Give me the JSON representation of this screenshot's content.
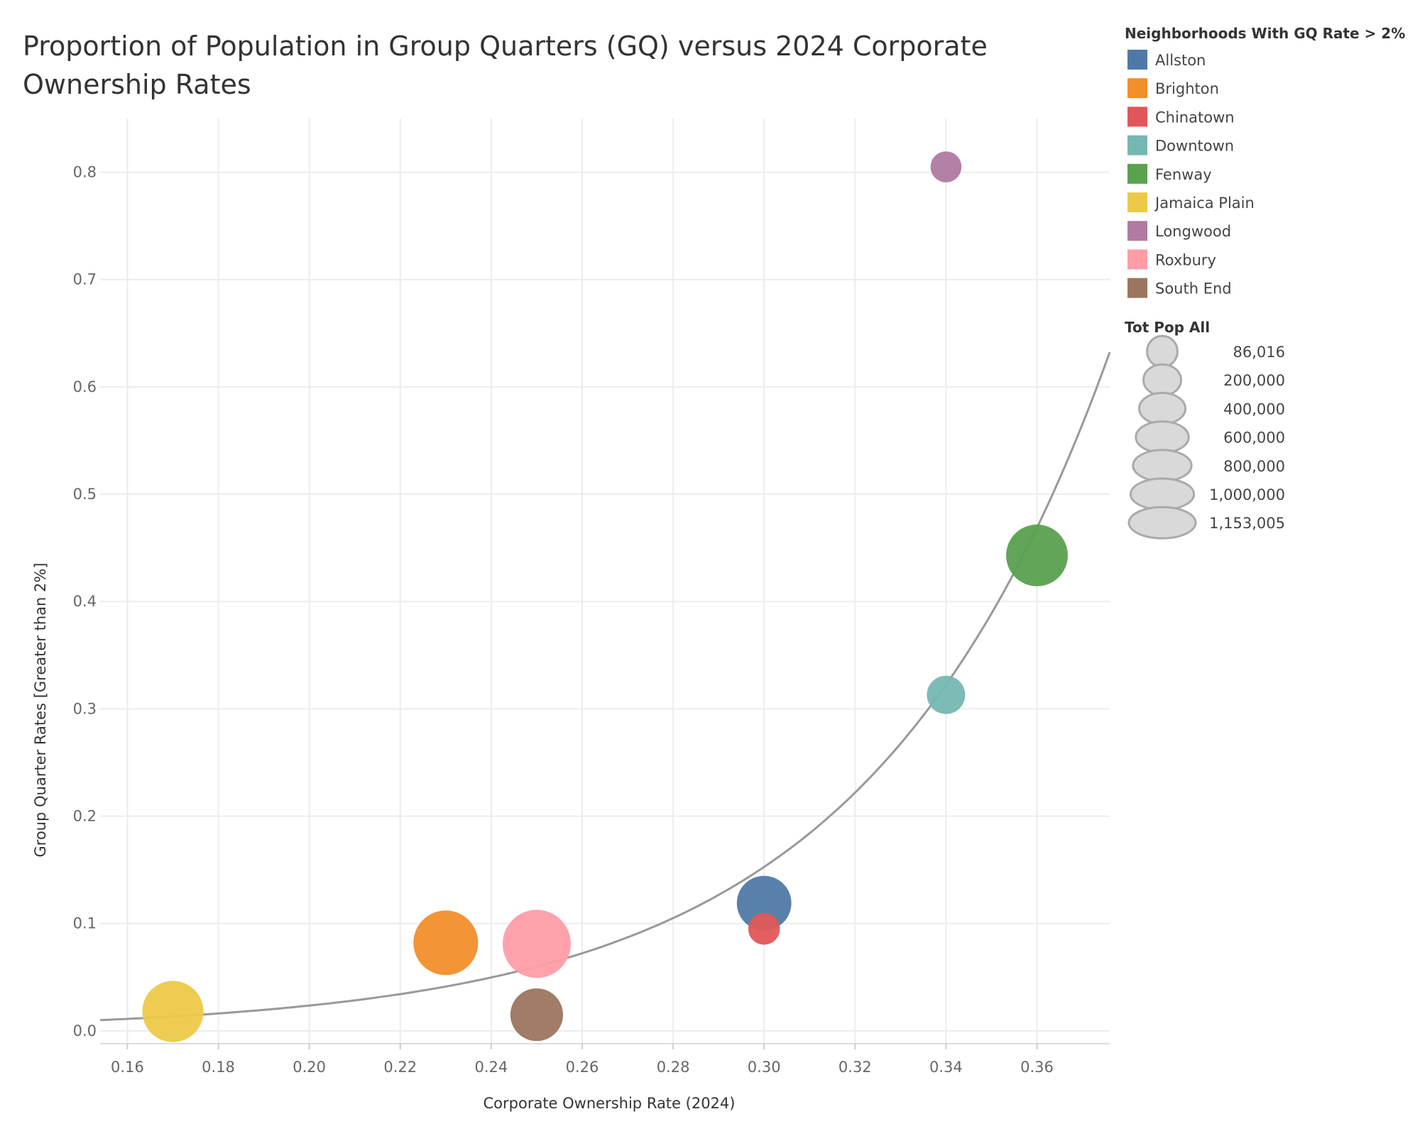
{
  "chart_data": {
    "type": "scatter",
    "title": "Proportion of Population in Group Quarters (GQ) versus 2024 Corporate Ownership Rates",
    "xlabel": "Corporate Ownership Rate (2024)",
    "ylabel": "Group Quarter Rates [Greater than 2%]",
    "xlim": [
      0.154,
      0.376
    ],
    "ylim": [
      -0.012,
      0.85
    ],
    "xticks": [
      0.16,
      0.18,
      0.2,
      0.22,
      0.24,
      0.26,
      0.28,
      0.3,
      0.32,
      0.34,
      0.36
    ],
    "xtick_labels": [
      "0.16",
      "0.18",
      "0.20",
      "0.22",
      "0.24",
      "0.26",
      "0.28",
      "0.30",
      "0.32",
      "0.34",
      "0.36"
    ],
    "yticks": [
      0.0,
      0.1,
      0.2,
      0.3,
      0.4,
      0.5,
      0.6,
      0.7,
      0.8
    ],
    "ytick_labels": [
      "0.0",
      "0.1",
      "0.2",
      "0.3",
      "0.4",
      "0.5",
      "0.6",
      "0.7",
      "0.8"
    ],
    "grid": true,
    "legend_placement": "right",
    "color_legend_title": "Neighborhoods With GQ Rate > 2%",
    "size_legend_title": "Tot Pop All",
    "size_legend": [
      {
        "value": 86016,
        "label": "86,016"
      },
      {
        "value": 200000,
        "label": "200,000"
      },
      {
        "value": 400000,
        "label": "400,000"
      },
      {
        "value": 600000,
        "label": "600,000"
      },
      {
        "value": 800000,
        "label": "800,000"
      },
      {
        "value": 1000000,
        "label": "1,000,000"
      },
      {
        "value": 1153005,
        "label": "1,153,005"
      }
    ],
    "series": [
      {
        "name": "Allston",
        "color": "#4e79a7",
        "x": 0.3,
        "y": 0.119,
        "pop": 620000
      },
      {
        "name": "Brighton",
        "color": "#f28e2b",
        "x": 0.23,
        "y": 0.082,
        "pop": 1000000
      },
      {
        "name": "Chinatown",
        "color": "#e15759",
        "x": 0.3,
        "y": 0.095,
        "pop": 95000
      },
      {
        "name": "Downtown",
        "color": "#76b7b2",
        "x": 0.34,
        "y": 0.313,
        "pop": 200000
      },
      {
        "name": "Fenway",
        "color": "#59a14f",
        "x": 0.36,
        "y": 0.443,
        "pop": 880000
      },
      {
        "name": "Jamaica Plain",
        "color": "#edc948",
        "x": 0.17,
        "y": 0.018,
        "pop": 860000
      },
      {
        "name": "Longwood",
        "color": "#b07aa1",
        "x": 0.34,
        "y": 0.805,
        "pop": 86016
      },
      {
        "name": "Roxbury",
        "color": "#ff9da7",
        "x": 0.25,
        "y": 0.081,
        "pop": 1153005
      },
      {
        "name": "South End",
        "color": "#9c755f",
        "x": 0.25,
        "y": 0.015,
        "pop": 560000
      }
    ],
    "trend_line": {
      "type": "exponential",
      "color": "#999999"
    }
  }
}
